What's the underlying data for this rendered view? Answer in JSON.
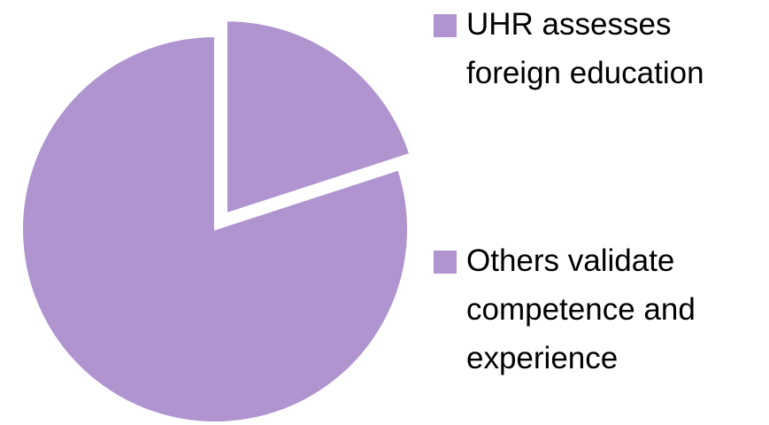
{
  "chart_data": {
    "type": "pie",
    "categories": [
      "UHR assesses foreign education",
      "Others validate competence and experience"
    ],
    "values": [
      20,
      80
    ],
    "colors": [
      "#b094d0",
      "#b094d0"
    ],
    "legend": "right"
  }
}
